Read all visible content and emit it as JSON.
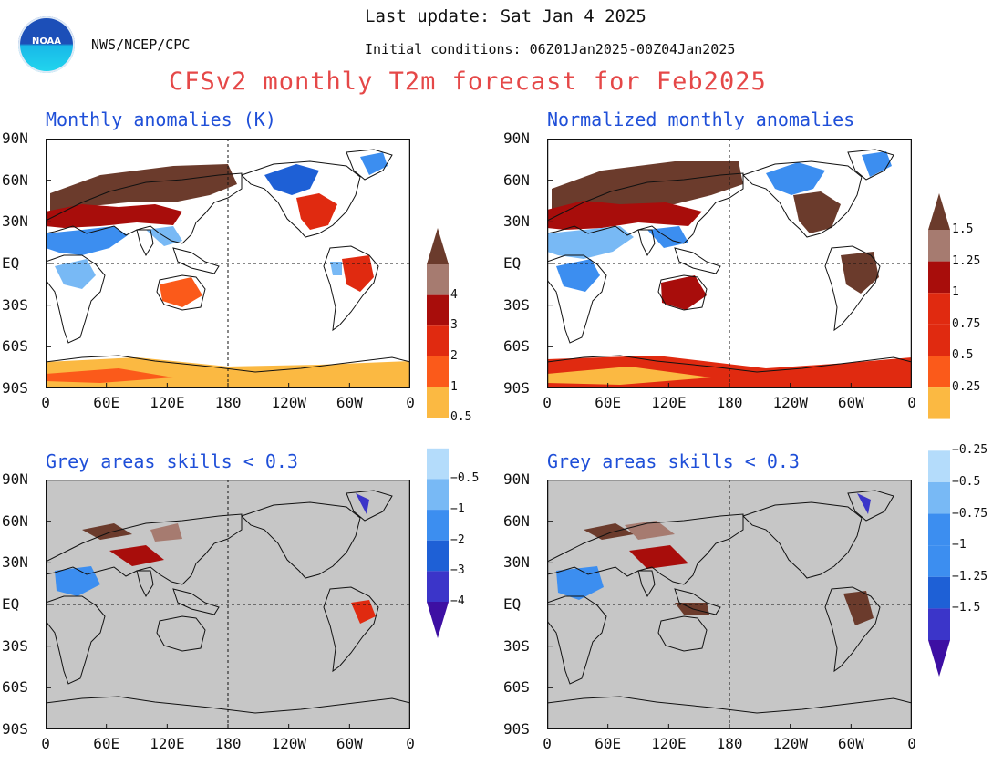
{
  "header": {
    "last_update": "Last update: Sat Jan 4 2025",
    "initial_conditions": "Initial conditions: 06Z01Jan2025-00Z04Jan2025",
    "agency": "NWS/NCEP/CPC",
    "logo_text": "NOAA",
    "title": "CFSv2 monthly T2m forecast for Feb2025"
  },
  "panels": {
    "top_left_title": "Monthly anomalies (K)",
    "top_right_title": "Normalized monthly anomalies",
    "bottom_left_title": "Grey areas skills < 0.3",
    "bottom_right_title": "Grey areas skills < 0.3"
  },
  "axes": {
    "lat_labels": [
      "90N",
      "60N",
      "30N",
      "EQ",
      "30S",
      "60S",
      "90S"
    ],
    "lon_labels": [
      "0",
      "60E",
      "120E",
      "180",
      "120W",
      "60W",
      "0"
    ]
  },
  "colorbar_left": {
    "labels": [
      "4",
      "3",
      "2",
      "1",
      "0.5",
      "−0.5",
      "−1",
      "−2",
      "−3",
      "−4"
    ]
  },
  "colorbar_right": {
    "labels": [
      "1.5",
      "1.25",
      "1",
      "0.75",
      "0.5",
      "0.25",
      "−0.25",
      "−0.5",
      "−0.75",
      "−1",
      "−1.25",
      "−1.5"
    ]
  },
  "colors": {
    "title_red": "#e54848",
    "panel_title_blue": "#1f4fd8",
    "land_grey": "#c6c6c6",
    "scale": [
      "#3d0fa3",
      "#3b35c9",
      "#1e60d6",
      "#3c8ef0",
      "#78b9f5",
      "#b4dcfb",
      "#ffffff",
      "#fbb942",
      "#fb5a1a",
      "#e02a10",
      "#a80d0b",
      "#a67b70",
      "#6b3b2c"
    ]
  }
}
